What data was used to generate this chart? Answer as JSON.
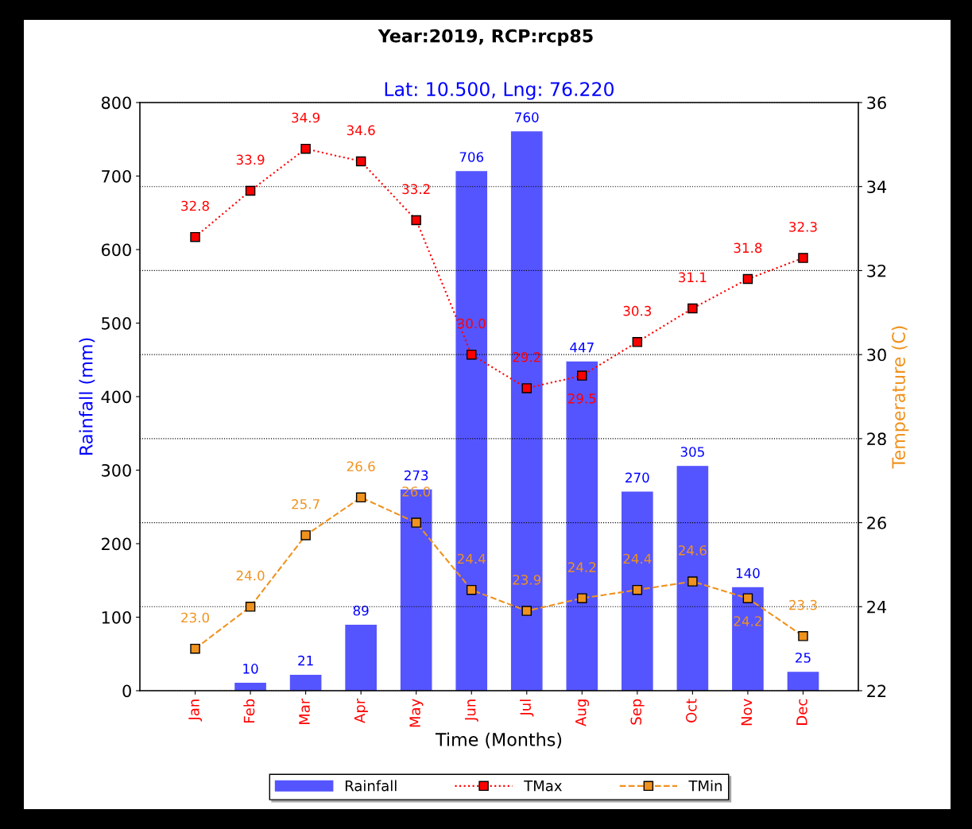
{
  "chart_data": {
    "type": "bar",
    "title": "Year:2019, RCP:rcp85",
    "subtitle": "Lat: 10.500, Lng: 76.220",
    "xlabel": "Time (Months)",
    "ylabel": "Rainfall (mm)",
    "y2label": "Temperature (C)",
    "categories": [
      "Jan",
      "Feb",
      "Mar",
      "Apr",
      "May",
      "Jun",
      "Jul",
      "Aug",
      "Sep",
      "Oct",
      "Nov",
      "Dec"
    ],
    "series": [
      {
        "name": "Rainfall",
        "color": "#5555ff",
        "values": [
          null,
          10,
          21,
          89,
          273,
          706,
          760,
          447,
          270,
          305,
          140,
          25
        ],
        "value_labels": [
          null,
          "10",
          "21",
          "89",
          "273",
          "706",
          "760",
          "447",
          "270",
          "305",
          "140",
          "25"
        ]
      },
      {
        "name": "TMax",
        "type": "line",
        "axis": "y2",
        "color": "#ff0000",
        "line_style": "dotted",
        "marker": "square",
        "value_labels": [
          "32.8",
          "33.9",
          "34.9",
          "34.6",
          "33.2",
          "30.0",
          "29.2",
          "29.5",
          "30.3",
          "31.1",
          "31.8",
          "32.3"
        ],
        "values": [
          32.8,
          33.9,
          34.9,
          34.6,
          33.2,
          30.0,
          29.2,
          29.5,
          30.3,
          31.1,
          31.8,
          32.3
        ]
      },
      {
        "name": "TMin",
        "type": "line",
        "axis": "y2",
        "color": "#f0921e",
        "line_style": "dashed",
        "marker": "square",
        "value_labels": [
          "23.0",
          "24.0",
          "25.7",
          "26.6",
          "26.0",
          "24.4",
          "23.9",
          "24.2",
          "24.4",
          "24.6",
          "24.2",
          "23.3"
        ],
        "values": [
          23.0,
          24.0,
          25.7,
          26.6,
          26.0,
          24.4,
          23.9,
          24.2,
          24.4,
          24.6,
          24.2,
          23.3
        ]
      }
    ],
    "ylim": [
      0,
      800
    ],
    "yticks": [
      0,
      100,
      200,
      300,
      400,
      500,
      600,
      700,
      800
    ],
    "y2lim": [
      22,
      36
    ],
    "y2ticks": [
      22,
      24,
      26,
      28,
      30,
      32,
      34,
      36
    ],
    "grid": "y2",
    "legend": "bottom"
  }
}
